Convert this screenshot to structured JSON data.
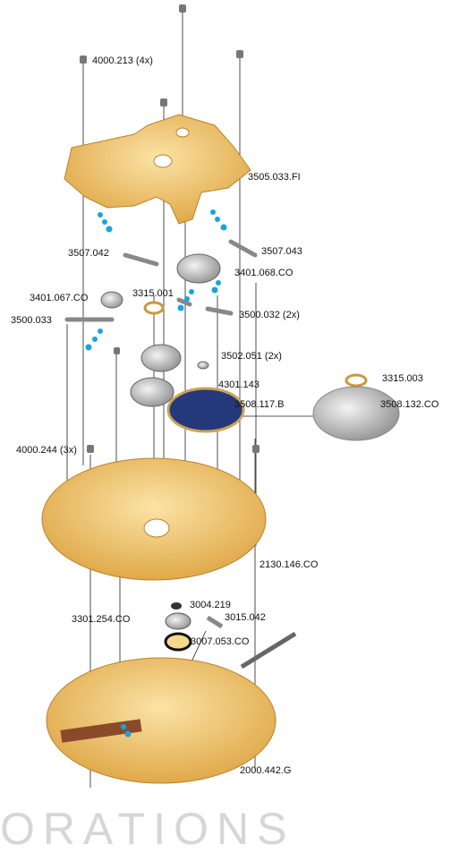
{
  "labels": [
    "4000.213 (4x)",
    "3505.033.FI",
    "3507.042",
    "3507.043",
    "3401.068.CO",
    "3401.067.CO",
    "3315.001",
    "3500.033",
    "3500.032 (2x)",
    "3502.051 (2x)",
    "4301.143",
    "3315.003",
    "3508.117.B",
    "3508.132.CO",
    "4000.244 (3x)",
    "2130.146.CO",
    "3004.219",
    "3015.042",
    "3301.254.CO",
    "3007.053.CO",
    "2000.442.G"
  ],
  "watermark": "ORATIONS"
}
